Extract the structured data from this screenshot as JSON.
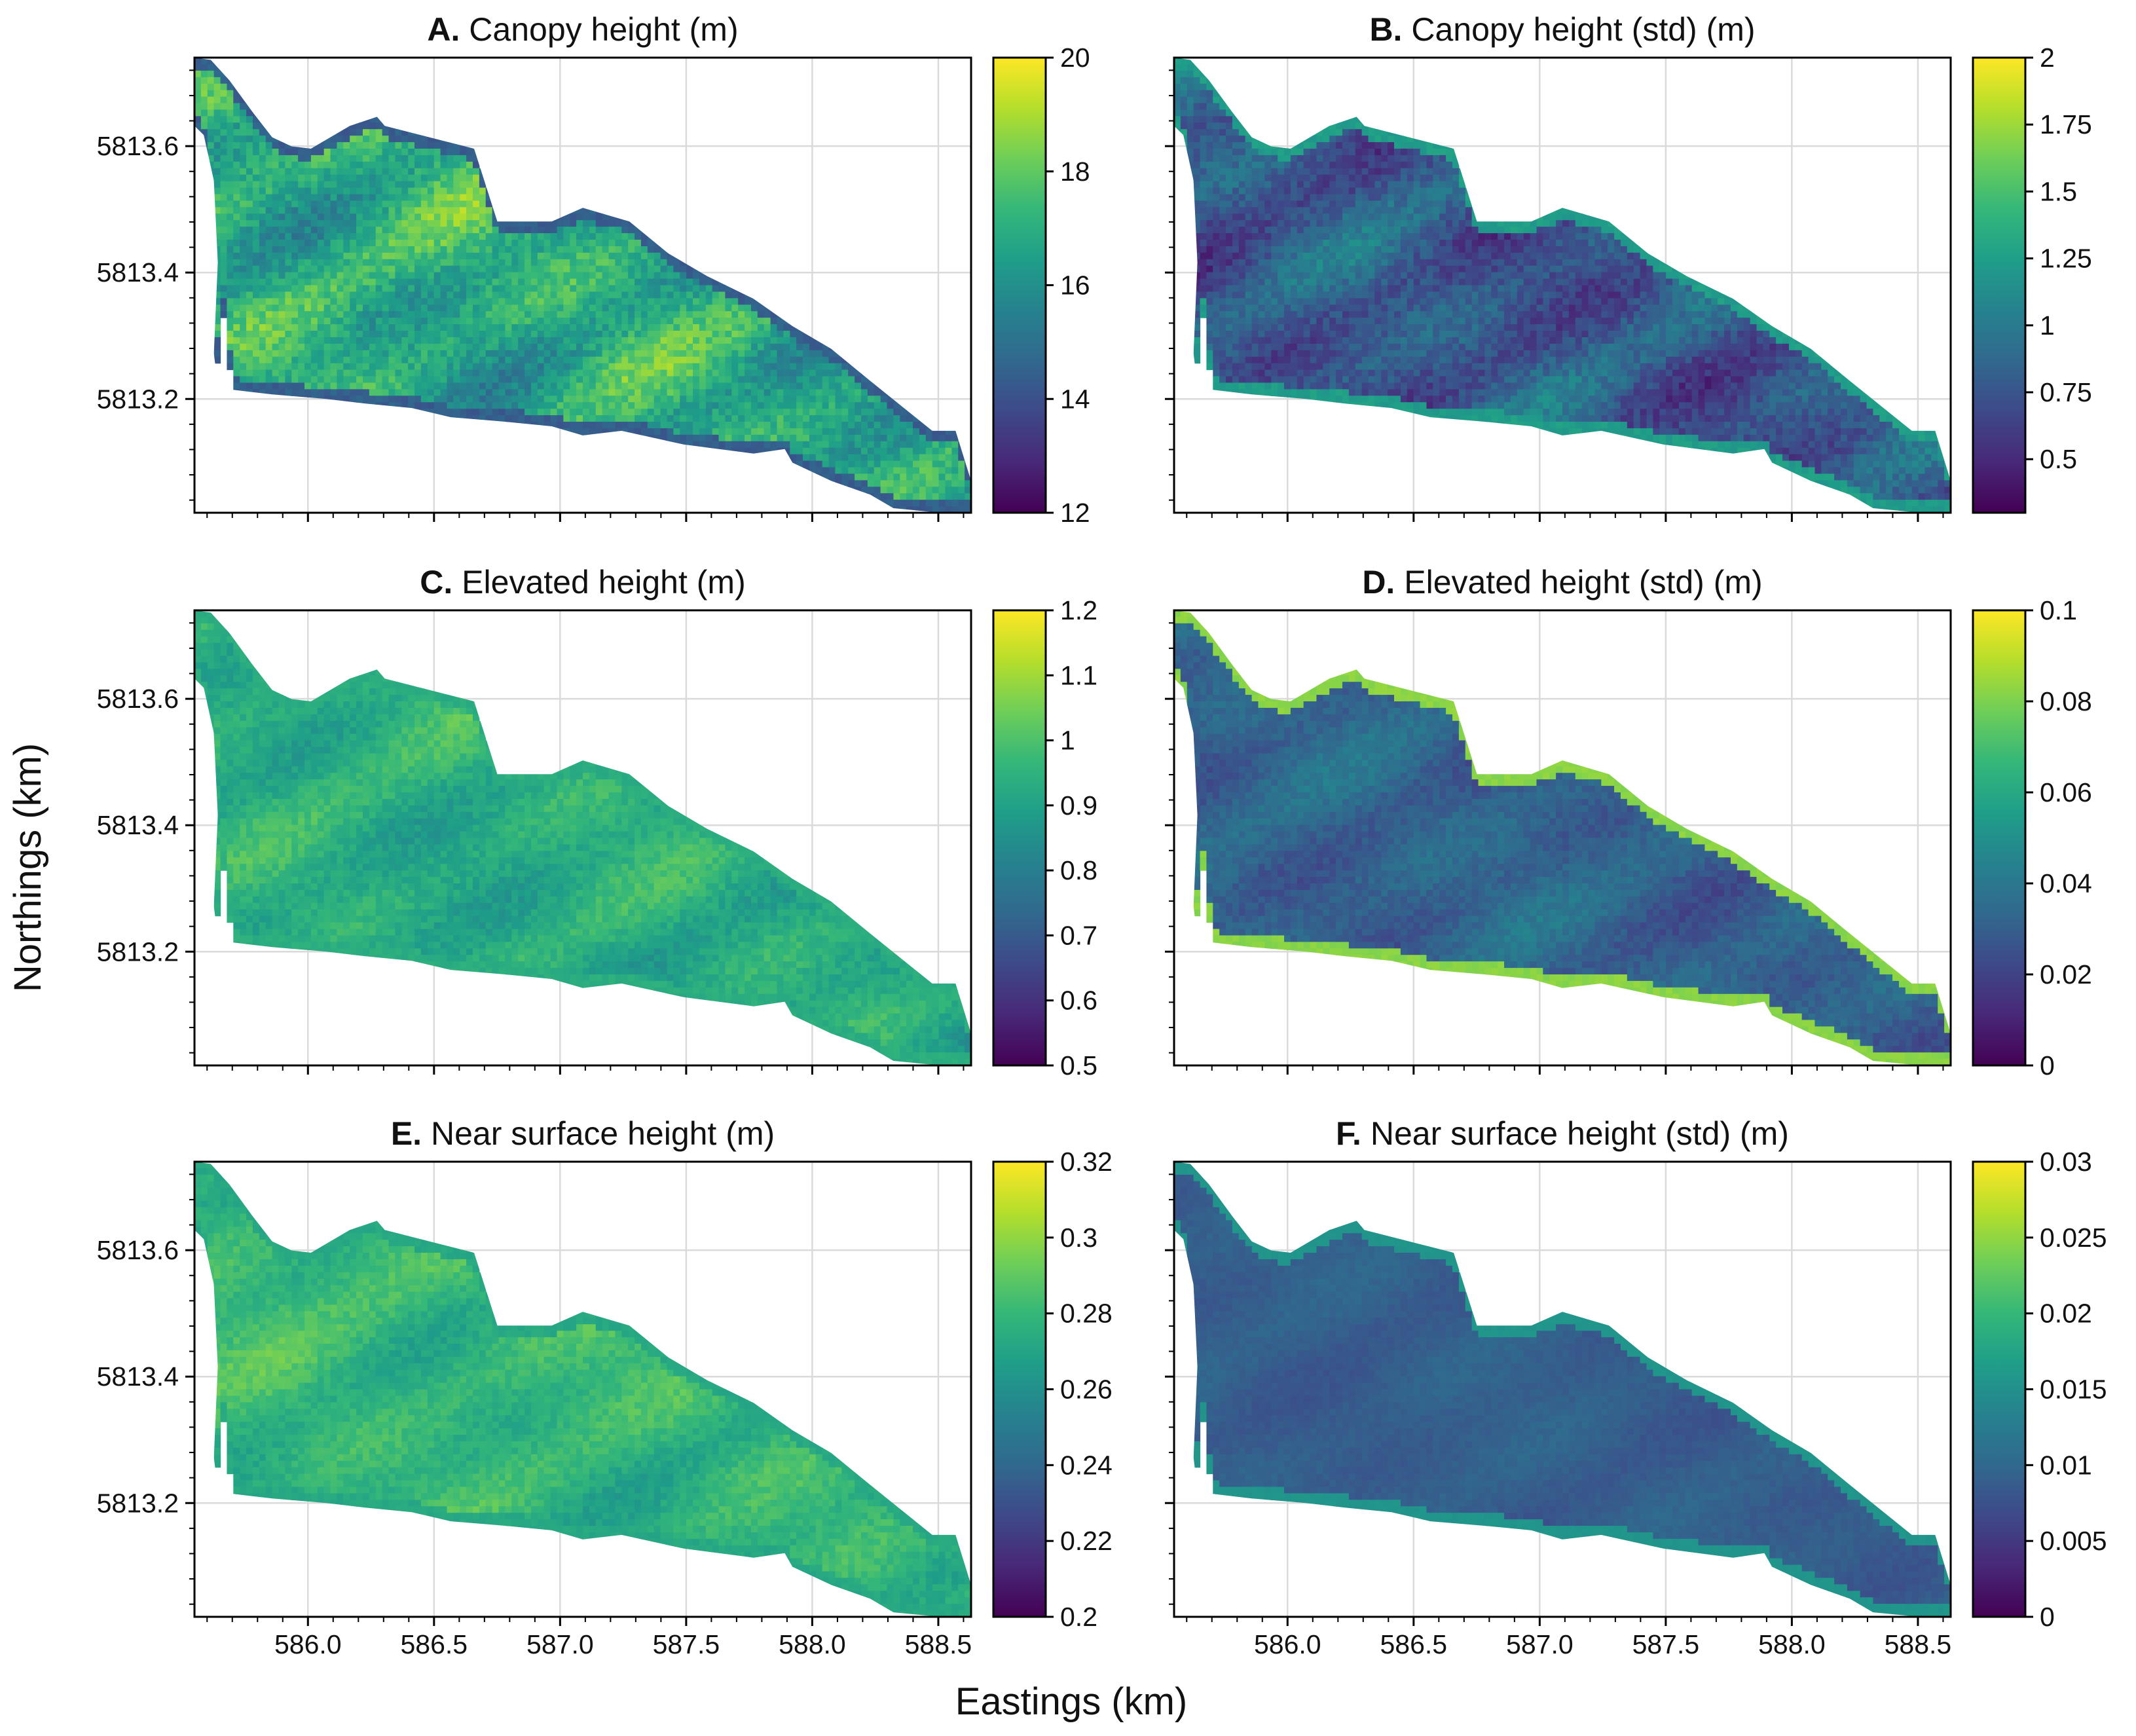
{
  "figure": {
    "xlabel": "Eastings (km)",
    "ylabel": "Northings (km)",
    "colormap": "viridis",
    "colormap_stops": [
      "#440154",
      "#482878",
      "#3e4989",
      "#31688e",
      "#26828e",
      "#1f9e89",
      "#35b779",
      "#6ece58",
      "#b5de2b",
      "#fde725"
    ]
  },
  "chart_data": [
    {
      "type": "heatmap",
      "letter": "A.",
      "title": "Canopy height (m)",
      "xlim": [
        585.55,
        588.63
      ],
      "ylim": [
        5813.02,
        5813.74
      ],
      "x_ticks": [
        "586.0",
        "586.5",
        "587.0",
        "587.5",
        "588.0",
        "588.5"
      ],
      "y_ticks": [
        "5813.2",
        "5813.4",
        "5813.6"
      ],
      "colorbar": {
        "min": 12,
        "max": 20,
        "ticks": [
          "12",
          "14",
          "16",
          "18",
          "20"
        ]
      },
      "field": {
        "mean": 0.62,
        "amp": 0.2,
        "edge_value": 0.3,
        "bias": 0.08
      }
    },
    {
      "type": "heatmap",
      "letter": "B.",
      "title": "Canopy height (std) (m)",
      "xlim": [
        585.55,
        588.63
      ],
      "ylim": [
        5813.02,
        5813.74
      ],
      "x_ticks": [
        "586.0",
        "586.5",
        "587.0",
        "587.5",
        "588.0",
        "588.5"
      ],
      "y_ticks": [
        "5813.2",
        "5813.4",
        "5813.6"
      ],
      "colorbar": {
        "min": 0.3,
        "max": 2,
        "ticks": [
          "0.5",
          "0.75",
          "1",
          "1.25",
          "1.5",
          "1.75",
          "2"
        ]
      },
      "field": {
        "mean": 0.28,
        "amp": 0.17,
        "edge_value": 0.55,
        "bias": 0.0
      }
    },
    {
      "type": "heatmap",
      "letter": "C.",
      "title": "Elevated height (m)",
      "xlim": [
        585.55,
        588.63
      ],
      "ylim": [
        5813.02,
        5813.74
      ],
      "x_ticks": [
        "586.0",
        "586.5",
        "587.0",
        "587.5",
        "588.0",
        "588.5"
      ],
      "y_ticks": [
        "5813.2",
        "5813.4",
        "5813.6"
      ],
      "colorbar": {
        "min": 0.5,
        "max": 1.2,
        "ticks": [
          "0.5",
          "0.6",
          "0.7",
          "0.8",
          "0.9",
          "1",
          "1.1",
          "1.2"
        ]
      },
      "field": {
        "mean": 0.62,
        "amp": 0.11,
        "edge_value": 0.62,
        "bias": 0.05
      }
    },
    {
      "type": "heatmap",
      "letter": "D.",
      "title": "Elevated height (std) (m)",
      "xlim": [
        585.55,
        588.63
      ],
      "ylim": [
        5813.02,
        5813.74
      ],
      "x_ticks": [
        "586.0",
        "586.5",
        "587.0",
        "587.5",
        "588.0",
        "588.5"
      ],
      "y_ticks": [
        "5813.2",
        "5813.4",
        "5813.6"
      ],
      "colorbar": {
        "min": 0,
        "max": 0.1,
        "ticks": [
          "0",
          "0.02",
          "0.04",
          "0.06",
          "0.08",
          "0.1"
        ]
      },
      "field": {
        "mean": 0.32,
        "amp": 0.1,
        "edge_value": 0.82,
        "bias": 0.0
      }
    },
    {
      "type": "heatmap",
      "letter": "E.",
      "title": "Near surface height (m)",
      "xlim": [
        585.55,
        588.63
      ],
      "ylim": [
        5813.02,
        5813.74
      ],
      "x_ticks": [
        "586.0",
        "586.5",
        "587.0",
        "587.5",
        "588.0",
        "588.5"
      ],
      "y_ticks": [
        "5813.2",
        "5813.4",
        "5813.6"
      ],
      "colorbar": {
        "min": 0.2,
        "max": 0.32,
        "ticks": [
          "0.2",
          "0.22",
          "0.24",
          "0.26",
          "0.28",
          "0.3",
          "0.32"
        ]
      },
      "field": {
        "mean": 0.66,
        "amp": 0.1,
        "edge_value": 0.6,
        "bias": 0.06
      }
    },
    {
      "type": "heatmap",
      "letter": "F.",
      "title": "Near surface height (std) (m)",
      "xlim": [
        585.55,
        588.63
      ],
      "ylim": [
        5813.02,
        5813.74
      ],
      "x_ticks": [
        "586.0",
        "586.5",
        "587.0",
        "587.5",
        "588.0",
        "588.5"
      ],
      "y_ticks": [
        "5813.2",
        "5813.4",
        "5813.6"
      ],
      "colorbar": {
        "min": 0,
        "max": 0.03,
        "ticks": [
          "0",
          "0.005",
          "0.01",
          "0.015",
          "0.02",
          "0.025",
          "0.03"
        ]
      },
      "field": {
        "mean": 0.3,
        "amp": 0.045,
        "edge_value": 0.52,
        "bias": 0.0
      }
    }
  ]
}
